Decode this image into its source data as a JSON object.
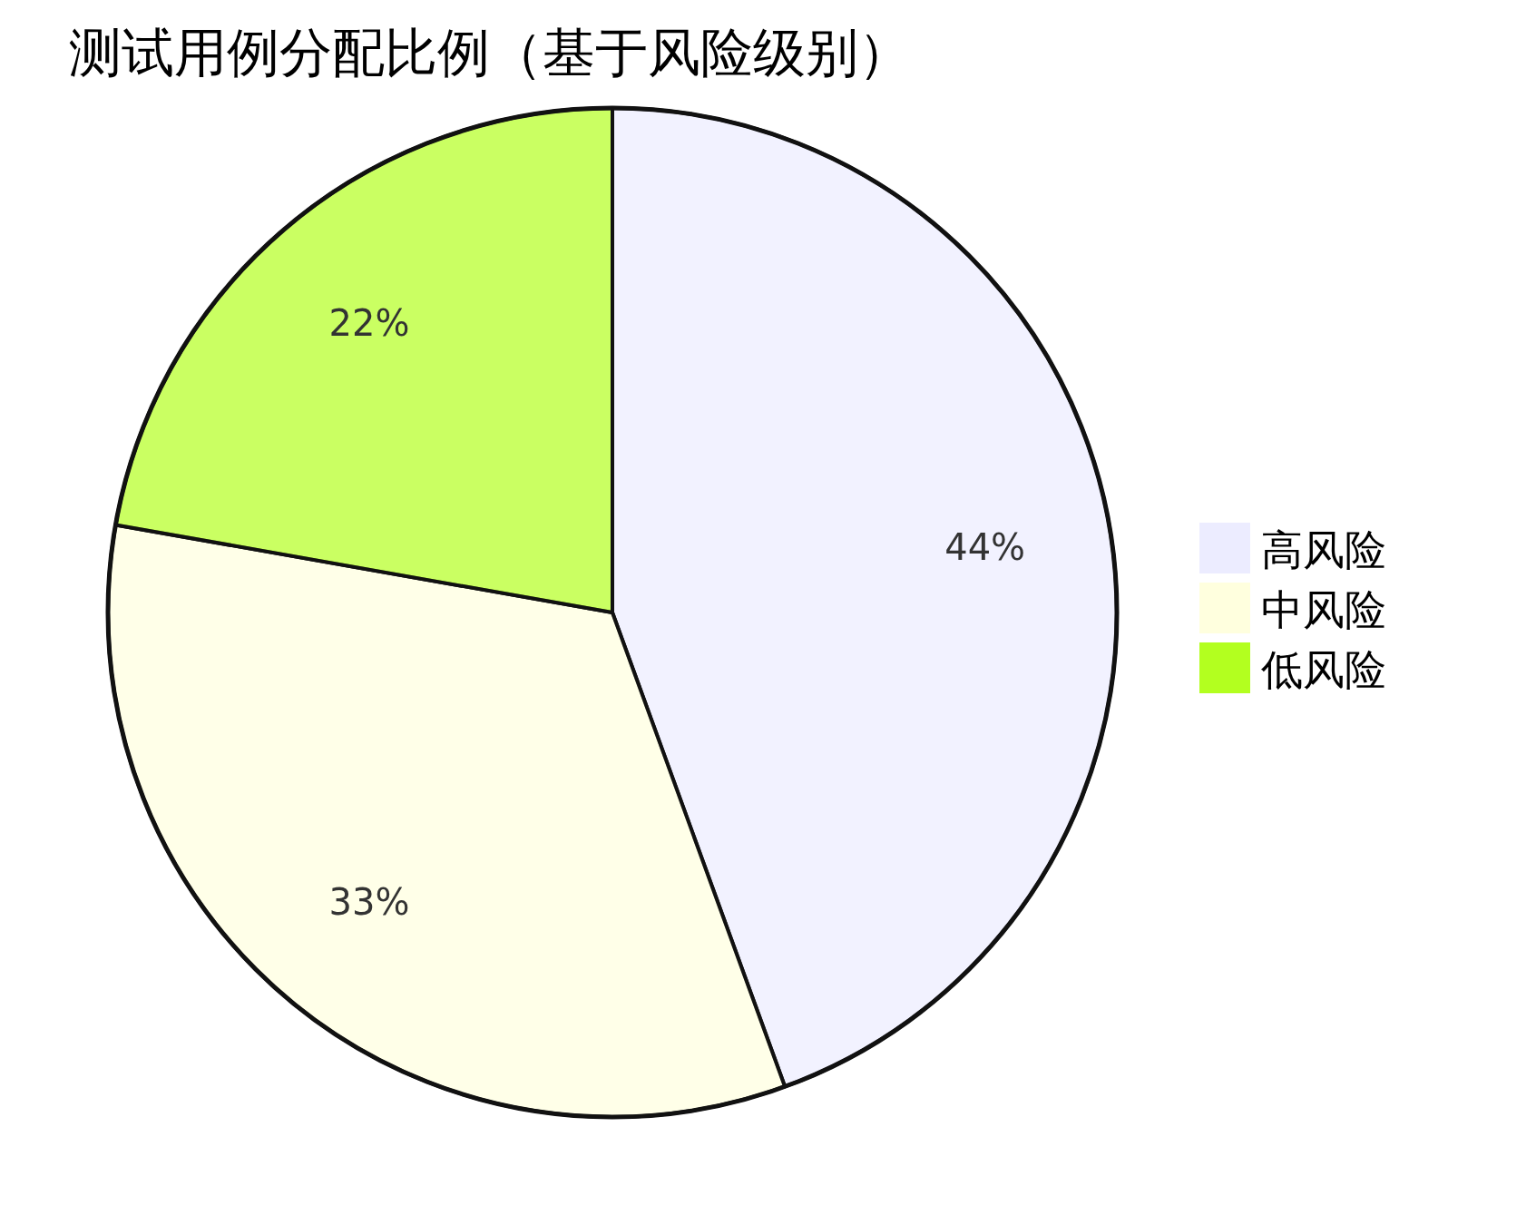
{
  "chart_data": {
    "type": "pie",
    "title": "测试用例分配比例（基于风险级别）",
    "categories": [
      "高风险",
      "中风险",
      "低风险"
    ],
    "values": [
      44,
      33,
      22
    ],
    "colors": [
      "#ececff",
      "#ffffde",
      "#b3ff1f"
    ],
    "value_labels": [
      "44%",
      "33%",
      "22%"
    ],
    "legend": "right"
  }
}
